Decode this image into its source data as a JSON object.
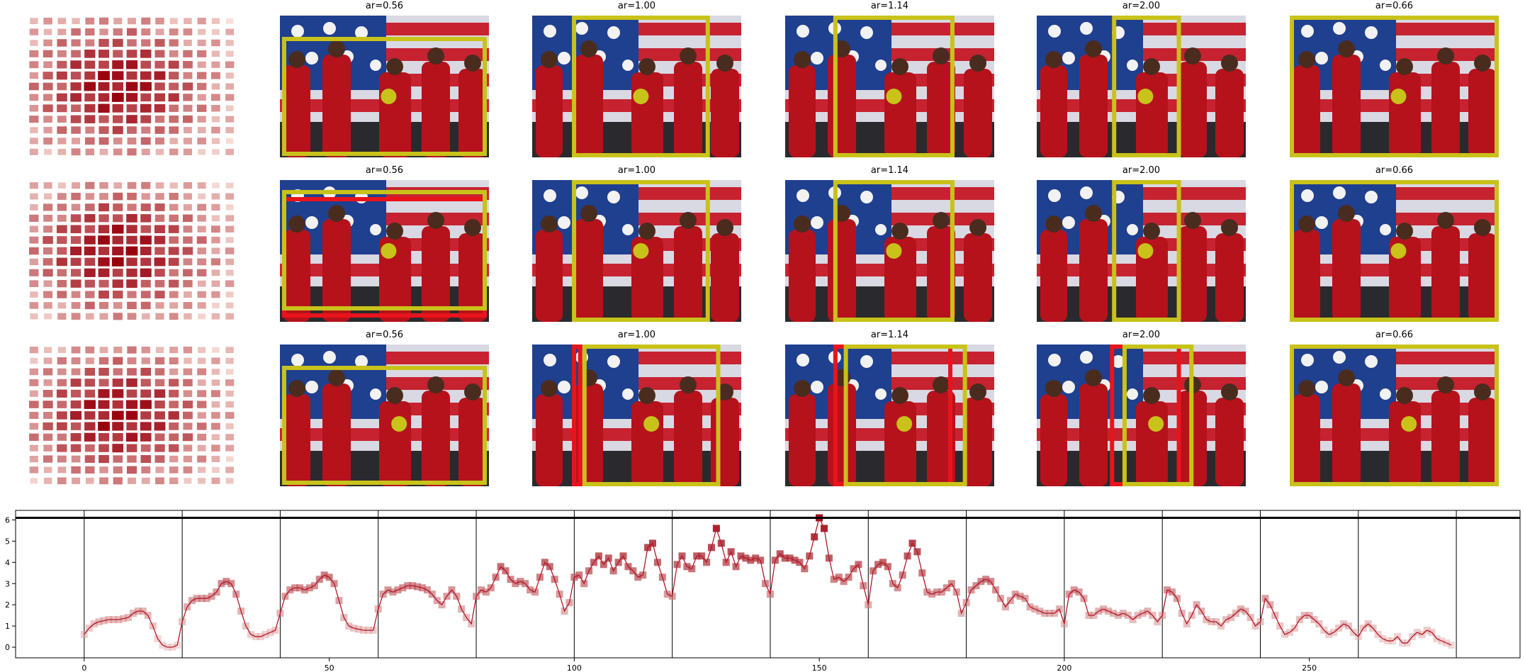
{
  "panels": {
    "titles": [
      [
        "ar=0.56",
        "ar=1.00",
        "ar=1.14",
        "ar=2.00",
        "ar=0.66"
      ],
      [
        "ar=0.56",
        "ar=1.00",
        "ar=1.14",
        "ar=2.00",
        "ar=0.66"
      ],
      [
        "ar=0.56",
        "ar=1.00",
        "ar=1.14",
        "ar=2.00",
        "ar=0.66"
      ]
    ]
  },
  "chart_data": {
    "type": "line",
    "color": "#b2182b",
    "values": [
      0.6,
      0.9,
      1.1,
      1.2,
      1.25,
      1.3,
      1.3,
      1.3,
      1.35,
      1.4,
      1.6,
      1.7,
      1.7,
      1.5,
      1.0,
      0.4,
      0.1,
      0.0,
      0.0,
      0.1,
      1.2,
      1.9,
      2.2,
      2.3,
      2.3,
      2.3,
      2.4,
      2.6,
      3.0,
      3.1,
      3.0,
      2.5,
      1.7,
      1.0,
      0.6,
      0.5,
      0.5,
      0.6,
      0.7,
      0.8,
      1.6,
      2.4,
      2.7,
      2.8,
      2.8,
      2.7,
      2.8,
      2.9,
      3.2,
      3.4,
      3.3,
      3.0,
      2.2,
      1.4,
      1.0,
      0.9,
      0.85,
      0.8,
      0.8,
      0.8,
      1.8,
      2.5,
      2.7,
      2.6,
      2.7,
      2.8,
      2.9,
      2.9,
      2.85,
      2.8,
      2.7,
      2.5,
      2.2,
      2.0,
      2.4,
      2.7,
      2.4,
      1.8,
      1.4,
      1.1,
      2.4,
      2.7,
      2.6,
      2.8,
      3.3,
      3.8,
      3.6,
      3.2,
      3.0,
      3.1,
      3.0,
      2.7,
      2.6,
      3.3,
      4.0,
      3.8,
      3.2,
      2.5,
      1.7,
      2.1,
      3.3,
      3.4,
      3.0,
      3.6,
      4.0,
      4.3,
      3.9,
      4.2,
      3.6,
      4.0,
      4.3,
      3.8,
      3.6,
      3.3,
      3.4,
      4.7,
      4.9,
      4.0,
      3.3,
      2.5,
      2.4,
      3.9,
      4.3,
      3.8,
      3.7,
      4.3,
      4.3,
      4.0,
      4.7,
      5.6,
      4.9,
      4.0,
      4.5,
      3.8,
      4.3,
      4.2,
      4.1,
      4.2,
      4.1,
      3.0,
      2.5,
      4.1,
      4.4,
      4.2,
      4.2,
      4.1,
      4.0,
      3.7,
      4.3,
      5.2,
      6.1,
      5.6,
      4.2,
      3.2,
      3.3,
      3.1,
      3.3,
      3.7,
      3.9,
      2.9,
      2.0,
      3.6,
      3.9,
      4.0,
      3.8,
      3.0,
      2.8,
      3.4,
      4.3,
      4.9,
      4.5,
      3.5,
      2.6,
      2.5,
      2.6,
      2.6,
      2.8,
      3.0,
      2.6,
      1.6,
      2.1,
      2.7,
      2.9,
      3.1,
      3.2,
      3.1,
      2.7,
      2.3,
      1.9,
      2.2,
      2.5,
      2.4,
      2.3,
      1.9,
      1.8,
      1.7,
      1.6,
      1.6,
      1.6,
      1.8,
      1.1,
      2.5,
      2.7,
      2.6,
      2.3,
      1.5,
      1.5,
      1.7,
      1.8,
      1.7,
      1.6,
      1.5,
      1.6,
      1.5,
      1.3,
      1.5,
      1.6,
      1.7,
      1.5,
      1.2,
      1.5,
      2.7,
      2.6,
      2.3,
      1.6,
      1.1,
      1.5,
      2.0,
      1.7,
      1.3,
      1.2,
      1.2,
      1.0,
      1.3,
      1.4,
      1.6,
      1.8,
      1.7,
      1.4,
      1.0,
      1.2,
      2.3,
      2.0,
      1.5,
      1.0,
      0.6,
      0.7,
      0.9,
      1.3,
      1.5,
      1.5,
      1.3,
      1.1,
      0.8,
      0.6,
      0.7,
      0.9,
      1.1,
      1.0,
      0.7,
      0.5,
      0.9,
      1.1,
      0.9,
      0.6,
      0.4,
      0.3,
      0.3,
      0.5,
      0.2,
      0.2,
      0.5,
      0.7,
      0.6,
      0.8,
      0.7,
      0.4,
      0.3,
      0.2,
      0.1
    ],
    "xlim": [
      -14,
      293
    ],
    "ylim": [
      -0.5,
      6.45
    ],
    "xticks": [
      0,
      50,
      100,
      150,
      200,
      250
    ],
    "yticks": [
      0,
      1,
      2,
      3,
      4,
      5,
      6
    ],
    "vlines": [
      0,
      20,
      40,
      60,
      80,
      100,
      120,
      140,
      160,
      180,
      200,
      220,
      240,
      260,
      280
    ]
  }
}
